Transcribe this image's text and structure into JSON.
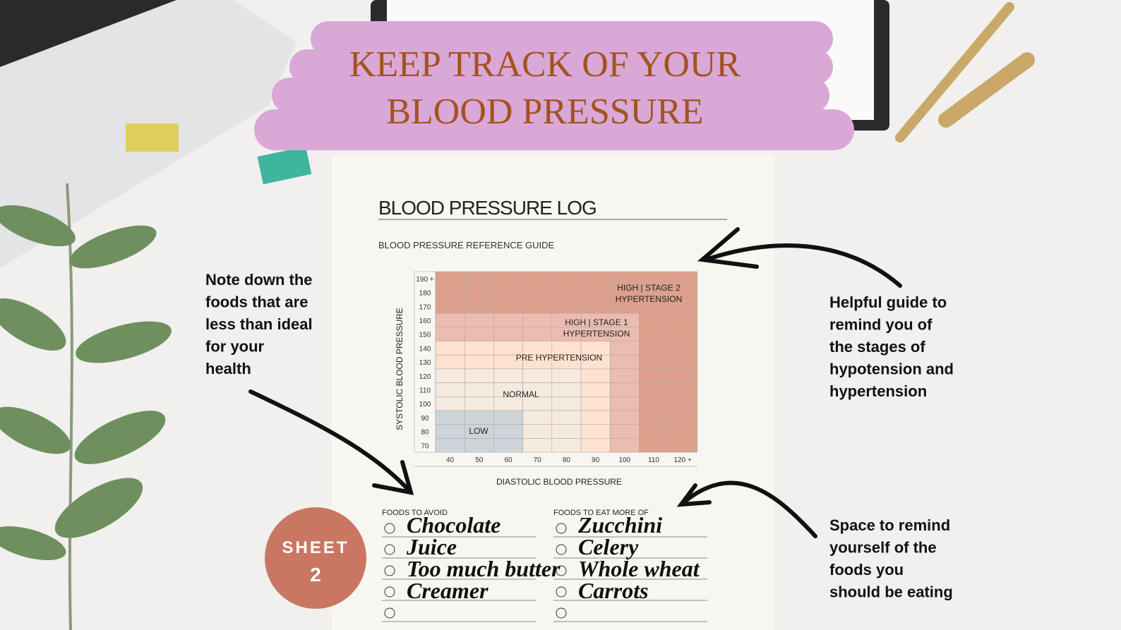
{
  "header": {
    "title_lines": [
      "KEEP TRACK OF YOUR",
      "BLOOD PRESSURE"
    ]
  },
  "sheet": {
    "title": "BLOOD PRESSURE LOG",
    "subtitle": "BLOOD PRESSURE REFERENCE GUIDE",
    "guide": {
      "y_axis_label": "SYSTOLIC BLOOD PRESSURE",
      "x_axis_label": "DIASTOLIC BLOOD PRESSURE",
      "y_ticks": [
        "190 +",
        "180",
        "170",
        "160",
        "150",
        "140",
        "130",
        "120",
        "110",
        "100",
        "90",
        "80",
        "70"
      ],
      "x_ticks": [
        "40",
        "50",
        "60",
        "70",
        "80",
        "90",
        "100",
        "110",
        "120 +"
      ],
      "zones": [
        {
          "lines": [
            "HIGH | STAGE 2",
            "HYPERTENSION"
          ]
        },
        {
          "lines": [
            "HIGH | STAGE 1",
            "HYPERTENSION"
          ]
        },
        {
          "lines": [
            "PRE HYPERTENSION"
          ]
        },
        {
          "lines": [
            "NORMAL"
          ]
        },
        {
          "lines": [
            "LOW"
          ]
        }
      ]
    },
    "foods_to_avoid": {
      "title": "FOODS TO AVOID",
      "items": [
        "Chocolate",
        "Juice",
        "Too much butter",
        "Creamer"
      ]
    },
    "foods_to_eat": {
      "title": "FOODS TO EAT MORE OF",
      "items": [
        "Zucchini",
        "Celery",
        "Whole wheat",
        "Carrots"
      ]
    }
  },
  "badge": {
    "line1": "SHEET",
    "line2": "2"
  },
  "notes": [
    {
      "lines": [
        "Note down the",
        "foods that are",
        "less than ideal",
        "for your",
        "health"
      ]
    },
    {
      "lines": [
        "Helpful guide to",
        "remind you of",
        "the stages of",
        "hypotension and",
        "hypertension"
      ]
    },
    {
      "lines": [
        "Space to remind",
        "yourself of the",
        "foods you",
        "should be eating"
      ]
    }
  ]
}
